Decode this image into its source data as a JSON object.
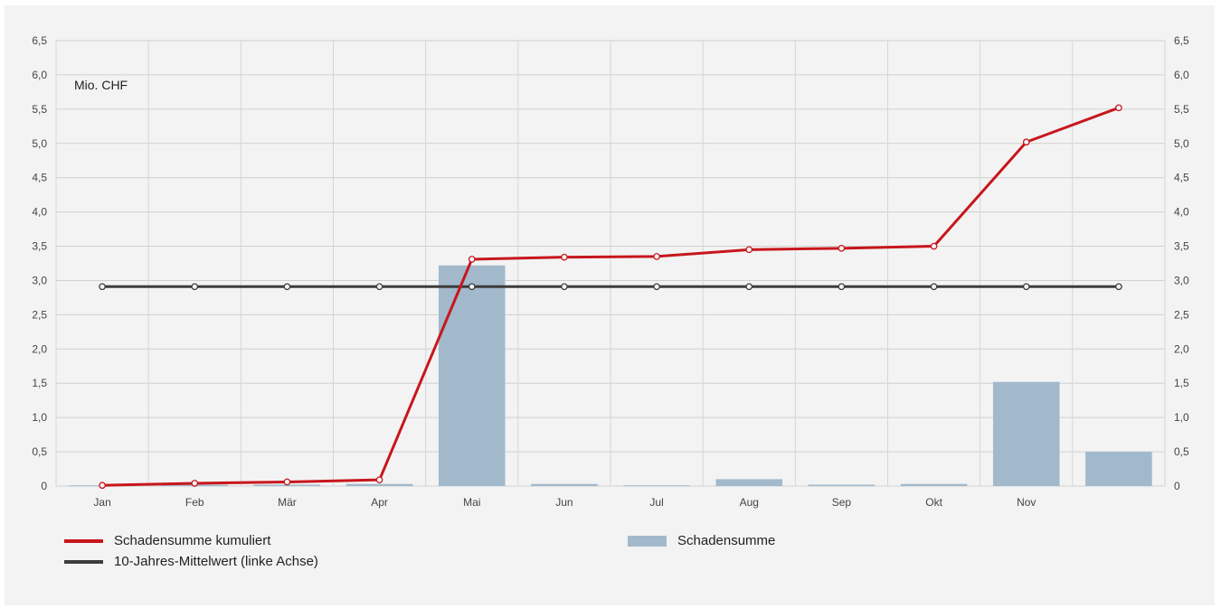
{
  "chart_data": {
    "type": "bar+line",
    "unit_label": "Mio. CHF",
    "categories": [
      "Jan",
      "Feb",
      "Mär",
      "Apr",
      "Mai",
      "Jun",
      "Jul",
      "Aug",
      "Sep",
      "Okt",
      "Nov",
      ""
    ],
    "y_ticks": [
      "0",
      "0,5",
      "1,0",
      "1,5",
      "2,0",
      "2,5",
      "3,0",
      "3,5",
      "4,0",
      "4,5",
      "5,0",
      "5,5",
      "6,0",
      "6,5"
    ],
    "ylim": [
      0,
      6.5
    ],
    "grid": true,
    "series": [
      {
        "name": "Schadensumme",
        "type": "bar",
        "axis": "right",
        "color": "#a2b8cb",
        "values": [
          0.01,
          0.02,
          0.02,
          0.03,
          3.22,
          0.03,
          0.01,
          0.1,
          0.02,
          0.03,
          1.52,
          0.5
        ]
      },
      {
        "name": "Schadensumme kumuliert",
        "type": "line",
        "axis": "right",
        "color": "#c8161d",
        "values": [
          0.01,
          0.04,
          0.06,
          0.09,
          3.31,
          3.34,
          3.35,
          3.45,
          3.47,
          3.5,
          5.02,
          5.52
        ]
      },
      {
        "name": "10-Jahres-Mittelwert (linke Achse)",
        "type": "line",
        "axis": "left",
        "color": "#3c3c3c",
        "values": [
          2.91,
          2.91,
          2.91,
          2.91,
          2.91,
          2.91,
          2.91,
          2.91,
          2.91,
          2.91,
          2.91,
          2.91
        ]
      }
    ]
  },
  "legend": {
    "cumulative": "Schadensumme kumuliert",
    "average": "10-Jahres-Mittelwert (linke Achse)",
    "bars": "Schadensumme"
  }
}
